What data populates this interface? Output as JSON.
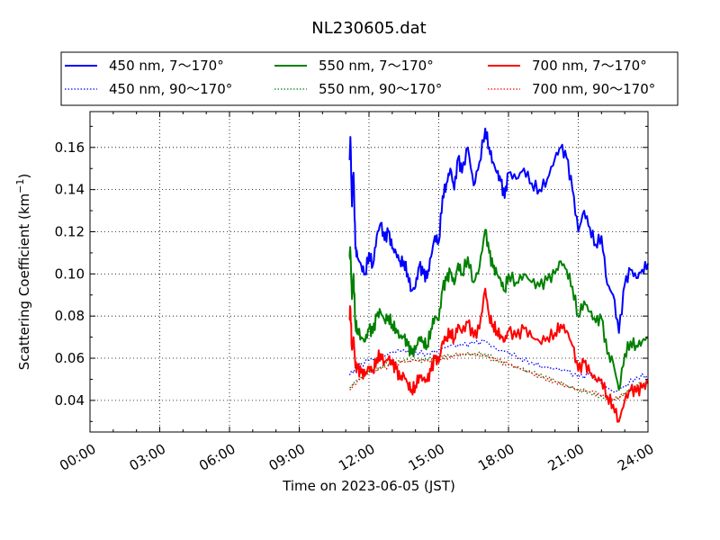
{
  "chart_data": {
    "type": "line",
    "title": "NL230605.dat",
    "xlabel": "Time on 2023-06-05 (JST)",
    "ylabel_main": "Scattering Coefficient (km",
    "ylabel_sup": "−1",
    "ylabel_close": ")",
    "xlim": [
      "00:00",
      "24:00"
    ],
    "ylim": [
      0.025,
      0.177
    ],
    "grid": true,
    "legend_position": "top",
    "x_ticks": [
      "00:00",
      "03:00",
      "06:00",
      "09:00",
      "12:00",
      "15:00",
      "18:00",
      "21:00",
      "24:00"
    ],
    "y_ticks": [
      "0.04",
      "0.06",
      "0.08",
      "0.10",
      "0.12",
      "0.14",
      "0.16"
    ],
    "series": [
      {
        "name": "450 nm, 7～170°",
        "color": "#0000ff",
        "style": "solid",
        "x": [
          "11:10",
          "11:12",
          "11:16",
          "11:20",
          "11:25",
          "11:30",
          "11:40",
          "11:50",
          "12:00",
          "12:10",
          "12:20",
          "12:30",
          "12:40",
          "12:50",
          "13:00",
          "13:10",
          "13:20",
          "13:30",
          "13:40",
          "13:50",
          "14:00",
          "14:10",
          "14:20",
          "14:30",
          "14:40",
          "14:50",
          "15:00",
          "15:10",
          "15:20",
          "15:30",
          "15:40",
          "15:50",
          "16:00",
          "16:15",
          "16:30",
          "16:45",
          "17:00",
          "17:10",
          "17:20",
          "17:30",
          "17:40",
          "17:50",
          "18:00",
          "18:20",
          "18:40",
          "19:00",
          "19:20",
          "19:40",
          "20:00",
          "20:15",
          "20:30",
          "20:45",
          "21:00",
          "21:15",
          "21:30",
          "21:45",
          "22:00",
          "22:15",
          "22:30",
          "22:45",
          "23:00",
          "23:15",
          "23:30",
          "23:45",
          "24:00"
        ],
        "y": [
          0.154,
          0.165,
          0.132,
          0.148,
          0.112,
          0.108,
          0.104,
          0.1,
          0.11,
          0.104,
          0.118,
          0.124,
          0.116,
          0.12,
          0.112,
          0.11,
          0.106,
          0.106,
          0.1,
          0.092,
          0.094,
          0.104,
          0.1,
          0.098,
          0.108,
          0.118,
          0.115,
          0.137,
          0.143,
          0.15,
          0.14,
          0.155,
          0.148,
          0.16,
          0.142,
          0.153,
          0.169,
          0.16,
          0.153,
          0.148,
          0.144,
          0.136,
          0.148,
          0.145,
          0.15,
          0.143,
          0.14,
          0.145,
          0.155,
          0.16,
          0.155,
          0.14,
          0.12,
          0.13,
          0.122,
          0.114,
          0.118,
          0.095,
          0.09,
          0.072,
          0.095,
          0.102,
          0.098,
          0.102,
          0.105
        ]
      },
      {
        "name": "450 nm, 90～170°",
        "color": "#0000ff",
        "style": "dotted",
        "x": [
          "11:10",
          "11:30",
          "12:00",
          "12:30",
          "13:00",
          "13:30",
          "14:00",
          "14:30",
          "15:00",
          "15:30",
          "16:00",
          "16:30",
          "17:00",
          "17:30",
          "18:00",
          "18:30",
          "19:00",
          "19:30",
          "20:00",
          "20:30",
          "21:00",
          "21:30",
          "22:00",
          "22:30",
          "23:00",
          "23:30",
          "24:00"
        ],
        "y": [
          0.052,
          0.056,
          0.059,
          0.06,
          0.063,
          0.064,
          0.063,
          0.062,
          0.064,
          0.066,
          0.066,
          0.067,
          0.068,
          0.064,
          0.063,
          0.06,
          0.058,
          0.056,
          0.055,
          0.054,
          0.051,
          0.052,
          0.048,
          0.044,
          0.047,
          0.051,
          0.052
        ]
      },
      {
        "name": "550 nm, 7～170°",
        "color": "#008000",
        "style": "solid",
        "x": [
          "11:10",
          "11:12",
          "11:16",
          "11:20",
          "11:25",
          "11:30",
          "11:40",
          "11:50",
          "12:00",
          "12:10",
          "12:20",
          "12:30",
          "12:40",
          "12:50",
          "13:00",
          "13:10",
          "13:20",
          "13:30",
          "13:40",
          "13:50",
          "14:00",
          "14:10",
          "14:20",
          "14:30",
          "14:40",
          "14:50",
          "15:00",
          "15:10",
          "15:20",
          "15:30",
          "15:40",
          "15:50",
          "16:00",
          "16:15",
          "16:30",
          "16:45",
          "17:00",
          "17:10",
          "17:20",
          "17:30",
          "17:40",
          "17:50",
          "18:00",
          "18:20",
          "18:40",
          "19:00",
          "19:20",
          "19:40",
          "20:00",
          "20:15",
          "20:30",
          "20:45",
          "21:00",
          "21:15",
          "21:30",
          "21:45",
          "22:00",
          "22:15",
          "22:30",
          "22:45",
          "23:00",
          "23:15",
          "23:30",
          "23:45",
          "24:00"
        ],
        "y": [
          0.108,
          0.111,
          0.088,
          0.1,
          0.076,
          0.074,
          0.07,
          0.068,
          0.074,
          0.072,
          0.08,
          0.082,
          0.078,
          0.08,
          0.076,
          0.074,
          0.07,
          0.07,
          0.066,
          0.062,
          0.064,
          0.07,
          0.068,
          0.066,
          0.074,
          0.08,
          0.078,
          0.093,
          0.097,
          0.101,
          0.095,
          0.105,
          0.1,
          0.108,
          0.096,
          0.103,
          0.121,
          0.11,
          0.103,
          0.1,
          0.097,
          0.092,
          0.1,
          0.096,
          0.1,
          0.096,
          0.094,
          0.097,
          0.1,
          0.106,
          0.102,
          0.094,
          0.08,
          0.087,
          0.082,
          0.077,
          0.079,
          0.062,
          0.058,
          0.045,
          0.062,
          0.068,
          0.066,
          0.068,
          0.07
        ]
      },
      {
        "name": "550 nm, 90～170°",
        "color": "#008000",
        "style": "dotted",
        "x": [
          "11:10",
          "11:30",
          "12:00",
          "12:30",
          "13:00",
          "13:30",
          "14:00",
          "14:30",
          "15:00",
          "15:30",
          "16:00",
          "16:30",
          "17:00",
          "17:30",
          "18:00",
          "18:30",
          "19:00",
          "19:30",
          "20:00",
          "20:30",
          "21:00",
          "21:30",
          "22:00",
          "22:30",
          "23:00",
          "23:30",
          "24:00"
        ],
        "y": [
          0.046,
          0.05,
          0.054,
          0.056,
          0.058,
          0.059,
          0.059,
          0.059,
          0.06,
          0.061,
          0.062,
          0.062,
          0.062,
          0.059,
          0.057,
          0.055,
          0.053,
          0.051,
          0.049,
          0.047,
          0.045,
          0.044,
          0.042,
          0.04,
          0.043,
          0.047,
          0.048
        ]
      },
      {
        "name": "700 nm, 7～170°",
        "color": "#ff0000",
        "style": "solid",
        "x": [
          "11:10",
          "11:12",
          "11:16",
          "11:20",
          "11:25",
          "11:30",
          "11:40",
          "11:50",
          "12:00",
          "12:10",
          "12:20",
          "12:30",
          "12:40",
          "12:50",
          "13:00",
          "13:10",
          "13:20",
          "13:30",
          "13:40",
          "13:50",
          "14:00",
          "14:10",
          "14:20",
          "14:30",
          "14:40",
          "14:50",
          "15:00",
          "15:10",
          "15:20",
          "15:30",
          "15:40",
          "15:50",
          "16:00",
          "16:15",
          "16:30",
          "16:45",
          "17:00",
          "17:10",
          "17:20",
          "17:30",
          "17:40",
          "17:50",
          "18:00",
          "18:20",
          "18:40",
          "19:00",
          "19:20",
          "19:40",
          "20:00",
          "20:15",
          "20:30",
          "20:45",
          "21:00",
          "21:15",
          "21:30",
          "21:45",
          "22:00",
          "22:15",
          "22:30",
          "22:45",
          "23:00",
          "23:15",
          "23:30",
          "23:45",
          "24:00"
        ],
        "y": [
          0.08,
          0.084,
          0.064,
          0.07,
          0.056,
          0.055,
          0.053,
          0.052,
          0.056,
          0.054,
          0.06,
          0.062,
          0.058,
          0.06,
          0.057,
          0.055,
          0.05,
          0.052,
          0.048,
          0.045,
          0.047,
          0.052,
          0.05,
          0.049,
          0.054,
          0.06,
          0.058,
          0.068,
          0.07,
          0.073,
          0.069,
          0.076,
          0.072,
          0.077,
          0.07,
          0.074,
          0.093,
          0.08,
          0.076,
          0.073,
          0.071,
          0.068,
          0.073,
          0.07,
          0.074,
          0.07,
          0.068,
          0.07,
          0.072,
          0.076,
          0.073,
          0.066,
          0.054,
          0.058,
          0.053,
          0.05,
          0.05,
          0.042,
          0.038,
          0.03,
          0.04,
          0.045,
          0.044,
          0.046,
          0.048
        ]
      },
      {
        "name": "700 nm, 90～170°",
        "color": "#ff0000",
        "style": "dotted",
        "x": [
          "11:10",
          "11:30",
          "12:00",
          "12:30",
          "13:00",
          "13:30",
          "14:00",
          "14:30",
          "15:00",
          "15:30",
          "16:00",
          "16:30",
          "17:00",
          "17:30",
          "18:00",
          "18:30",
          "19:00",
          "19:30",
          "20:00",
          "20:30",
          "21:00",
          "21:30",
          "22:00",
          "22:30",
          "23:00",
          "23:30",
          "24:00"
        ],
        "y": [
          0.045,
          0.049,
          0.053,
          0.055,
          0.057,
          0.058,
          0.059,
          0.059,
          0.06,
          0.061,
          0.062,
          0.062,
          0.061,
          0.059,
          0.057,
          0.055,
          0.053,
          0.051,
          0.049,
          0.047,
          0.045,
          0.044,
          0.042,
          0.04,
          0.043,
          0.046,
          0.047
        ]
      }
    ]
  }
}
